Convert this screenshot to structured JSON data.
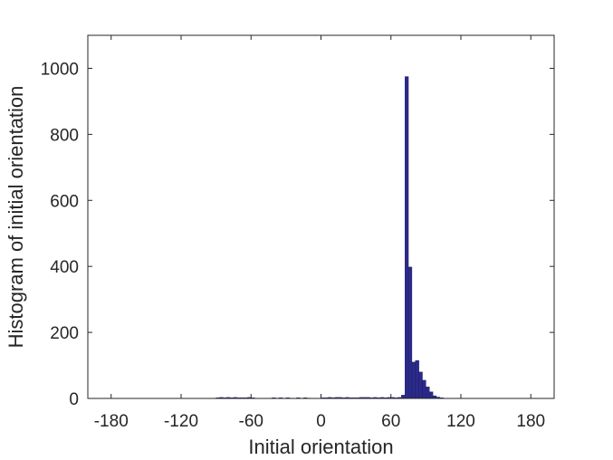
{
  "chart_data": {
    "type": "bar",
    "title": "",
    "xlabel": "Initial orientation",
    "ylabel": "Histogram of initial orientation",
    "xlim": [
      -200,
      200
    ],
    "ylim": [
      0,
      1100
    ],
    "xticks": [
      -180,
      -120,
      -60,
      0,
      60,
      120,
      180
    ],
    "yticks": [
      0,
      200,
      400,
      600,
      800,
      1000
    ],
    "xtick_labels": [
      "-180",
      "-120",
      "-60",
      "0",
      "60",
      "120",
      "180"
    ],
    "ytick_labels": [
      "0",
      "200",
      "400",
      "600",
      "800",
      "1000"
    ],
    "bin_width": 3,
    "bin_centers": [
      -88.5,
      -85.5,
      -82.5,
      -79.5,
      -76.5,
      -73.5,
      -70.5,
      -67.5,
      -64.5,
      -61.5,
      -58.5,
      -40.5,
      -37.5,
      -34.5,
      -28.5,
      -25.5,
      -19.5,
      -13.5,
      -10.5,
      1.5,
      4.5,
      7.5,
      10.5,
      13.5,
      16.5,
      19.5,
      22.5,
      25.5,
      28.5,
      31.5,
      34.5,
      37.5,
      40.5,
      43.5,
      46.5,
      49.5,
      52.5,
      55.5,
      58.5,
      61.5,
      64.5,
      67.5,
      70.5,
      73.5,
      76.5,
      79.5,
      82.5,
      85.5,
      88.5,
      91.5,
      94.5,
      97.5,
      100.5,
      103.5
    ],
    "values": [
      2,
      3,
      2,
      3,
      2,
      3,
      2,
      2,
      2,
      3,
      2,
      2,
      1,
      2,
      2,
      1,
      2,
      2,
      1,
      2,
      2,
      3,
      2,
      3,
      3,
      2,
      3,
      2,
      2,
      2,
      3,
      3,
      3,
      2,
      3,
      2,
      3,
      2,
      3,
      3,
      2,
      3,
      10,
      975,
      398,
      110,
      115,
      80,
      55,
      35,
      20,
      8,
      4,
      2
    ],
    "bar_color": "#2b2a8a",
    "bar_edge_color": "#1a1960",
    "grid": false,
    "box": true
  }
}
